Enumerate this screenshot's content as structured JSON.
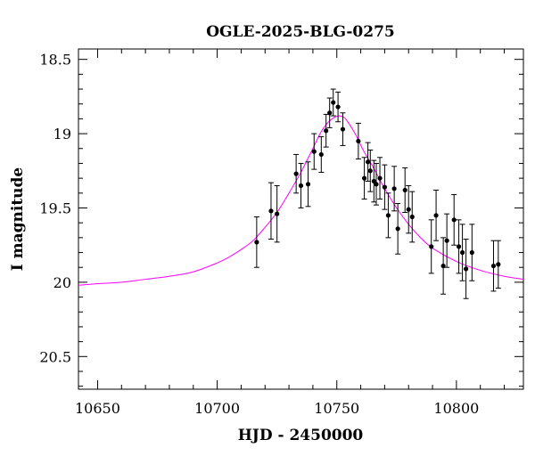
{
  "chart_data": {
    "type": "scatter",
    "title": "OGLE-2025-BLG-0275",
    "xlabel": "HJD - 2450000",
    "ylabel": "I magnitude",
    "xlim": [
      10642,
      10828
    ],
    "ylim": [
      20.72,
      18.43
    ],
    "y_inverted": true,
    "x_ticks": [
      10650,
      10700,
      10750,
      10800
    ],
    "x_tick_labels": [
      "10650",
      "10700",
      "10750",
      "10800"
    ],
    "y_ticks": [
      18.5,
      19,
      19.5,
      20,
      20.5
    ],
    "y_tick_labels": [
      "18.5",
      "19",
      "19.5",
      "20",
      "20.5"
    ],
    "x_minor_step": 10,
    "y_minor_step": 0.1,
    "series": [
      {
        "name": "photometry",
        "color": "#000000",
        "points": [
          {
            "x": 10716.5,
            "y": 19.73,
            "err": 0.17
          },
          {
            "x": 10722.5,
            "y": 19.52,
            "err": 0.19
          },
          {
            "x": 10725.0,
            "y": 19.54,
            "err": 0.19
          },
          {
            "x": 10733.0,
            "y": 19.27,
            "err": 0.13
          },
          {
            "x": 10735.0,
            "y": 19.35,
            "err": 0.15
          },
          {
            "x": 10738.0,
            "y": 19.34,
            "err": 0.15
          },
          {
            "x": 10740.5,
            "y": 19.12,
            "err": 0.12
          },
          {
            "x": 10743.5,
            "y": 19.14,
            "err": 0.12
          },
          {
            "x": 10745.5,
            "y": 18.98,
            "err": 0.11
          },
          {
            "x": 10747.0,
            "y": 18.86,
            "err": 0.1
          },
          {
            "x": 10748.5,
            "y": 18.79,
            "err": 0.09
          },
          {
            "x": 10750.5,
            "y": 18.82,
            "err": 0.1
          },
          {
            "x": 10752.5,
            "y": 18.97,
            "err": 0.11
          },
          {
            "x": 10759.0,
            "y": 19.05,
            "err": 0.12
          },
          {
            "x": 10761.5,
            "y": 19.3,
            "err": 0.14
          },
          {
            "x": 10763.0,
            "y": 19.19,
            "err": 0.13
          },
          {
            "x": 10764.0,
            "y": 19.25,
            "err": 0.14
          },
          {
            "x": 10765.5,
            "y": 19.32,
            "err": 0.14
          },
          {
            "x": 10766.5,
            "y": 19.34,
            "err": 0.14
          },
          {
            "x": 10768.0,
            "y": 19.3,
            "err": 0.14
          },
          {
            "x": 10770.0,
            "y": 19.36,
            "err": 0.15
          },
          {
            "x": 10771.5,
            "y": 19.55,
            "err": 0.15
          },
          {
            "x": 10774.0,
            "y": 19.37,
            "err": 0.15
          },
          {
            "x": 10775.5,
            "y": 19.64,
            "err": 0.17
          },
          {
            "x": 10778.5,
            "y": 19.38,
            "err": 0.15
          },
          {
            "x": 10780.0,
            "y": 19.51,
            "err": 0.16
          },
          {
            "x": 10781.5,
            "y": 19.56,
            "err": 0.17
          },
          {
            "x": 10789.5,
            "y": 19.76,
            "err": 0.18
          },
          {
            "x": 10791.5,
            "y": 19.55,
            "err": 0.17
          },
          {
            "x": 10794.5,
            "y": 19.89,
            "err": 0.19
          },
          {
            "x": 10796.0,
            "y": 19.72,
            "err": 0.18
          },
          {
            "x": 10799.0,
            "y": 19.58,
            "err": 0.17
          },
          {
            "x": 10801.0,
            "y": 19.76,
            "err": 0.18
          },
          {
            "x": 10802.5,
            "y": 19.8,
            "err": 0.19
          },
          {
            "x": 10804.0,
            "y": 19.91,
            "err": 0.2
          },
          {
            "x": 10806.5,
            "y": 19.8,
            "err": 0.19
          },
          {
            "x": 10815.5,
            "y": 19.89,
            "err": 0.17
          },
          {
            "x": 10817.5,
            "y": 19.88,
            "err": 0.16
          }
        ]
      }
    ],
    "model": {
      "name": "model",
      "color": "#ff00ff",
      "x": [
        10642,
        10650,
        10660,
        10670,
        10680,
        10690,
        10700,
        10705,
        10710,
        10715,
        10720,
        10725,
        10730,
        10735,
        10740,
        10743,
        10746,
        10749,
        10751,
        10753,
        10755,
        10758,
        10761,
        10765,
        10770,
        10775,
        10780,
        10785,
        10790,
        10800,
        10810,
        10820,
        10828
      ],
      "y": [
        20.02,
        20.01,
        20.0,
        19.98,
        19.96,
        19.93,
        19.87,
        19.83,
        19.78,
        19.72,
        19.63,
        19.53,
        19.4,
        19.26,
        19.1,
        19.0,
        18.93,
        18.89,
        18.88,
        18.89,
        18.93,
        19.01,
        19.11,
        19.22,
        19.37,
        19.5,
        19.61,
        19.7,
        19.77,
        19.86,
        19.92,
        19.96,
        19.98
      ]
    }
  }
}
